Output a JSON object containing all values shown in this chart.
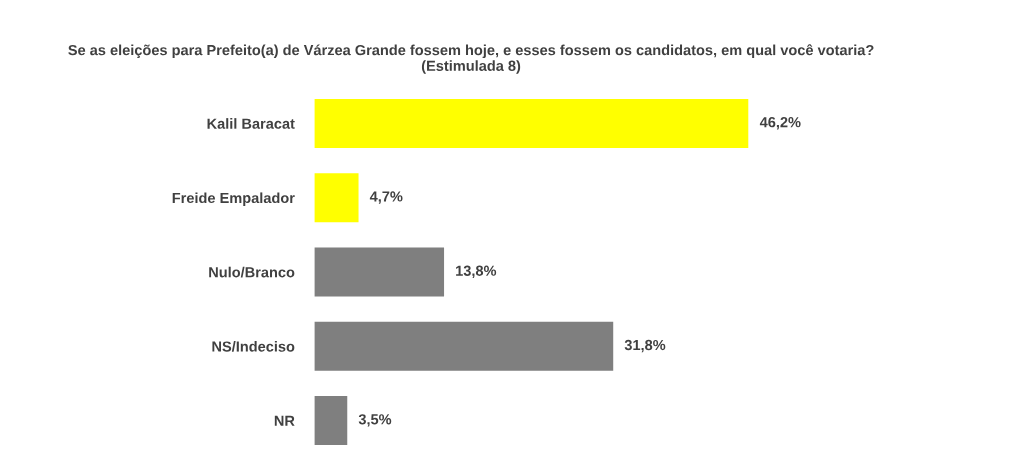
{
  "chart_data": {
    "type": "bar",
    "orientation": "horizontal",
    "title": "Se as eleições para Prefeito(a) de Várzea Grande fossem hoje, e esses fossem os candidatos, em qual você votaria? (Estimulada 8)",
    "categories": [
      "Kalil Baracat",
      "Freide Empalador",
      "Nulo/Branco",
      "NS/Indeciso",
      "NR"
    ],
    "values": [
      46.2,
      4.7,
      13.8,
      31.8,
      3.5
    ],
    "value_labels": [
      "46,2%",
      "4,7%",
      "13,8%",
      "31,8%",
      "3,5%"
    ],
    "colors": [
      "#ffff00",
      "#ffff00",
      "#7f7f7f",
      "#7f7f7f",
      "#7f7f7f"
    ]
  }
}
